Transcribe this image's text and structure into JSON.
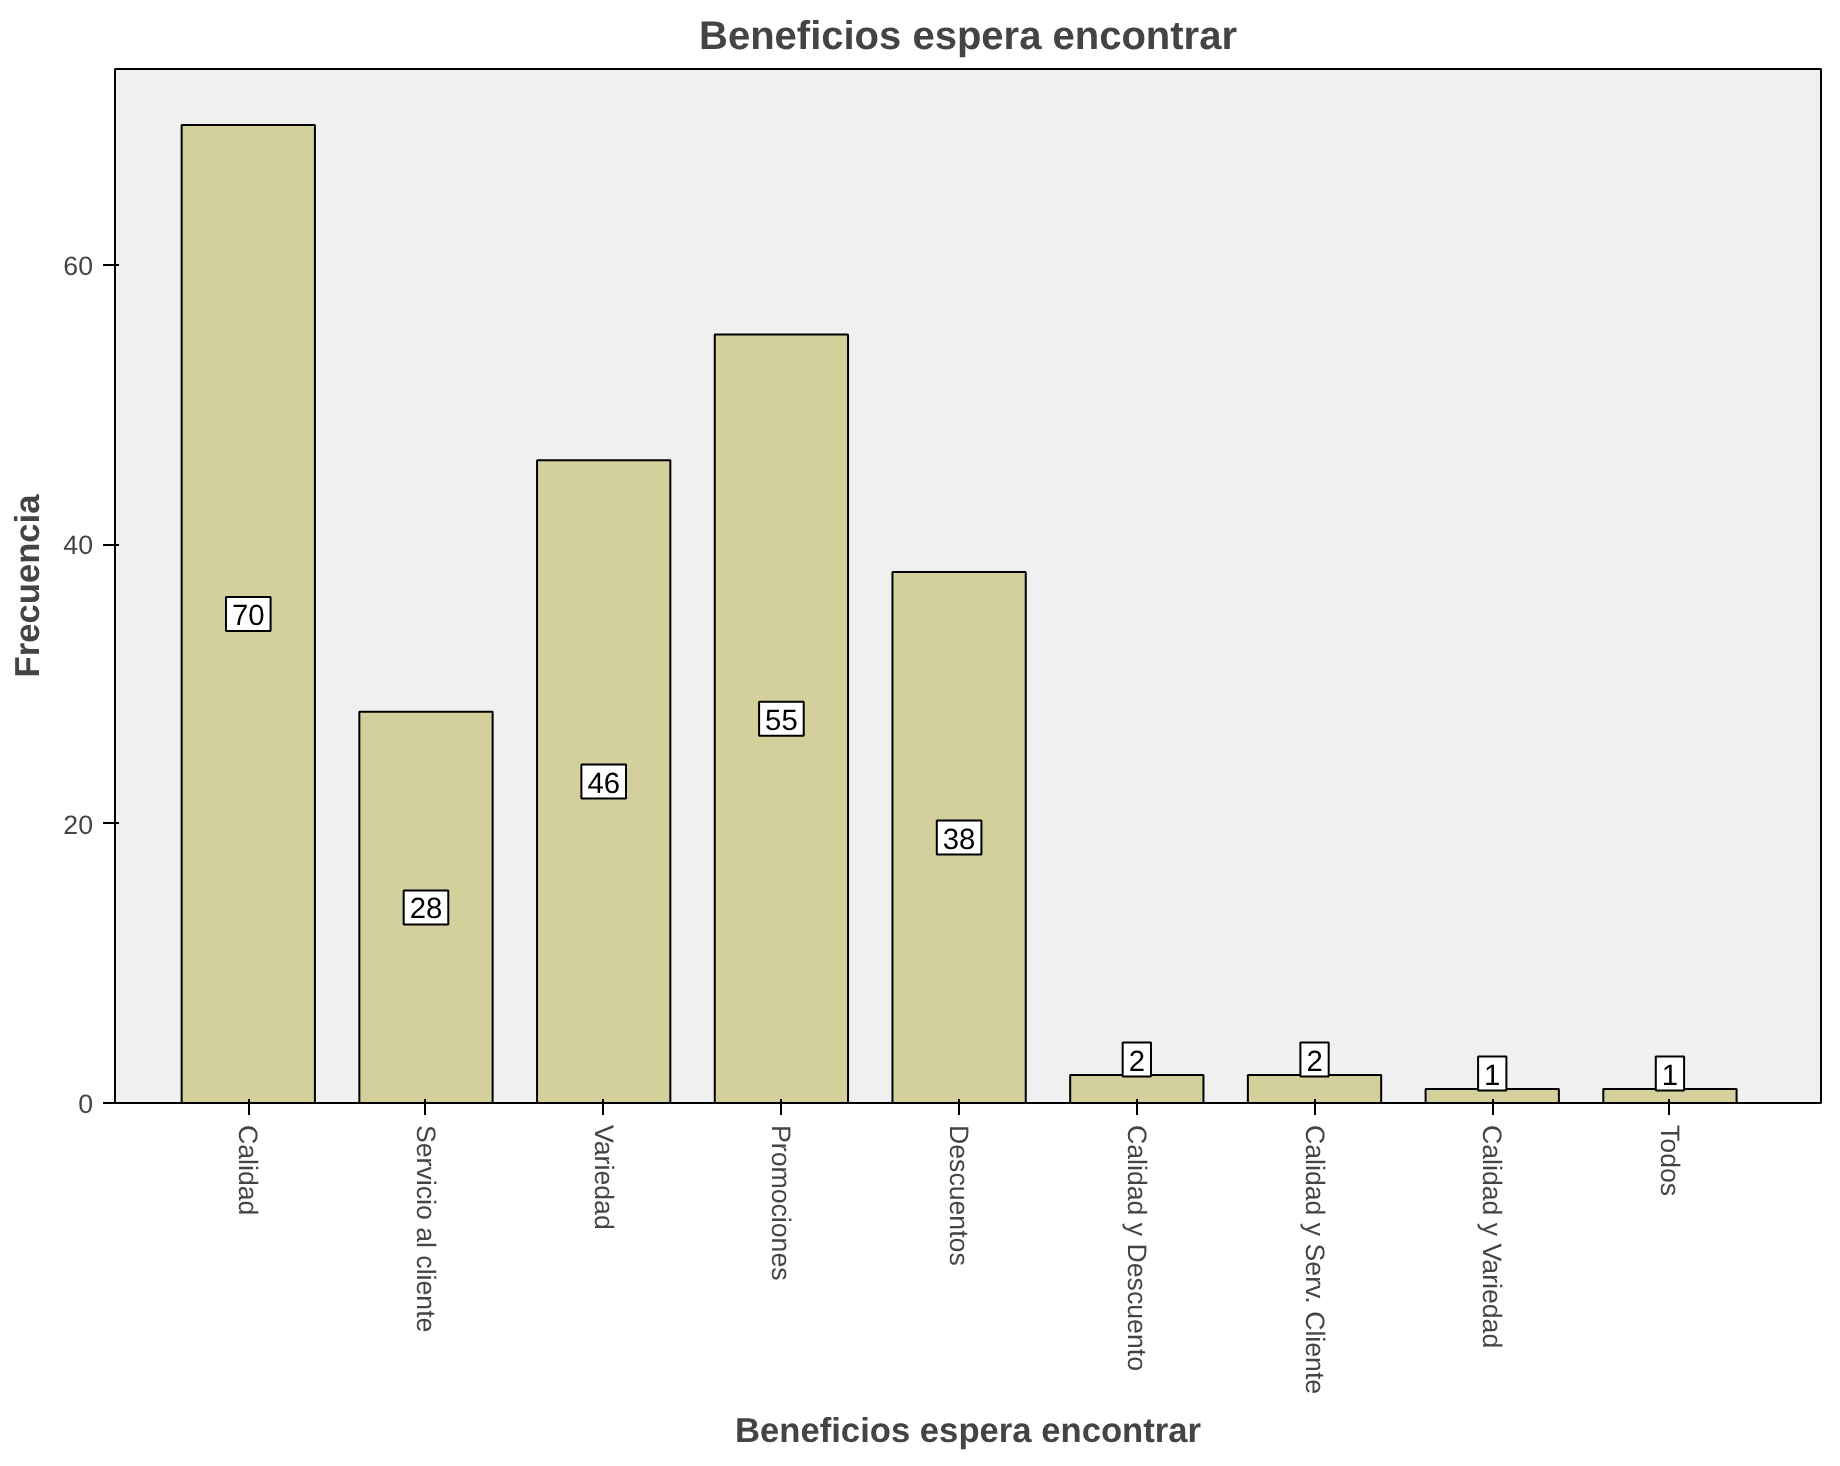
{
  "chart_data": {
    "type": "bar",
    "title": "Beneficios espera encontrar",
    "xlabel": "Beneficios espera encontrar",
    "ylabel": "Frecuencia",
    "categories": [
      "Calidad",
      "Servicio al cliente",
      "Variedad",
      "Promociones",
      "Descuentos",
      "Calidad y Descuento",
      "Calidad y Serv. Cliente",
      "Calidad y Variedad",
      "Todos"
    ],
    "values": [
      70,
      28,
      46,
      55,
      38,
      2,
      2,
      1,
      1
    ],
    "color": "#d4d09c",
    "ylim": [
      0,
      74
    ],
    "yticks": [
      0,
      20,
      40,
      60
    ],
    "grid": false,
    "data_labels": true
  }
}
